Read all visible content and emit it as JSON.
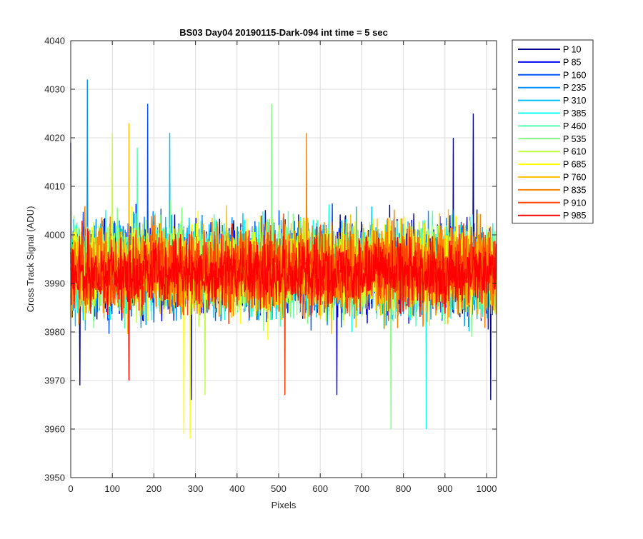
{
  "chart_data": {
    "type": "line",
    "title": "BS03 Day04 20190115-Dark-094 int time = 5 sec",
    "xlabel": "Pixels",
    "ylabel": "Cross Track Signal (ADU)",
    "xlim": [
      0,
      1024
    ],
    "ylim": [
      3950,
      4040
    ],
    "xticks": [
      0,
      100,
      200,
      300,
      400,
      500,
      600,
      700,
      800,
      900,
      1000
    ],
    "yticks": [
      3950,
      3960,
      3970,
      3980,
      3990,
      4000,
      4010,
      4020,
      4030,
      4040
    ],
    "grid": true,
    "legend_position": "outside-right",
    "series": [
      {
        "name": "P 10",
        "color": "#00008f",
        "mean": 3993,
        "spread": 9,
        "peaks": [
          [
            0,
            4019
          ],
          [
            22,
            3969
          ],
          [
            920,
            4020
          ],
          [
            968,
            4025
          ],
          [
            1010,
            3966
          ]
        ]
      },
      {
        "name": "P 85",
        "color": "#0000ff",
        "mean": 3993,
        "spread": 9,
        "peaks": [
          [
            290,
            3966
          ],
          [
            640,
            3967
          ]
        ]
      },
      {
        "name": "P 160",
        "color": "#0050ff",
        "mean": 3993,
        "spread": 9,
        "peaks": [
          [
            185,
            4027
          ]
        ]
      },
      {
        "name": "P 235",
        "color": "#0090ff",
        "mean": 3993,
        "spread": 9,
        "peaks": [
          [
            40,
            4032
          ]
        ]
      },
      {
        "name": "P 310",
        "color": "#00c0ff",
        "mean": 3993,
        "spread": 9,
        "peaks": [
          [
            238,
            4021
          ]
        ]
      },
      {
        "name": "P 385",
        "color": "#10ffef",
        "mean": 3993,
        "spread": 9,
        "peaks": [
          [
            855,
            3960
          ]
        ]
      },
      {
        "name": "P 460",
        "color": "#50ffb0",
        "mean": 3993,
        "spread": 9,
        "peaks": [
          [
            160,
            4018
          ]
        ]
      },
      {
        "name": "P 535",
        "color": "#80ff80",
        "mean": 3993,
        "spread": 9,
        "peaks": [
          [
            483,
            4027
          ],
          [
            770,
            3960
          ]
        ]
      },
      {
        "name": "P 610",
        "color": "#c0ff40",
        "mean": 3993,
        "spread": 9,
        "peaks": [
          [
            100,
            4021
          ],
          [
            323,
            3967
          ]
        ]
      },
      {
        "name": "P 685",
        "color": "#ffff00",
        "mean": 3993,
        "spread": 9,
        "peaks": [
          [
            272,
            3959
          ],
          [
            287,
            3958
          ]
        ]
      },
      {
        "name": "P 760",
        "color": "#ffc000",
        "mean": 3993,
        "spread": 9,
        "peaks": [
          [
            140,
            4023
          ]
        ]
      },
      {
        "name": "P 835",
        "color": "#ff8000",
        "mean": 3993,
        "spread": 9,
        "peaks": [
          [
            567,
            4021
          ]
        ]
      },
      {
        "name": "P 910",
        "color": "#ff4000",
        "mean": 3993,
        "spread": 8,
        "peaks": [
          [
            515,
            3967
          ]
        ]
      },
      {
        "name": "P 985",
        "color": "#ff0000",
        "mean": 3992,
        "spread": 7,
        "peaks": [
          [
            140,
            3970
          ]
        ]
      }
    ]
  }
}
